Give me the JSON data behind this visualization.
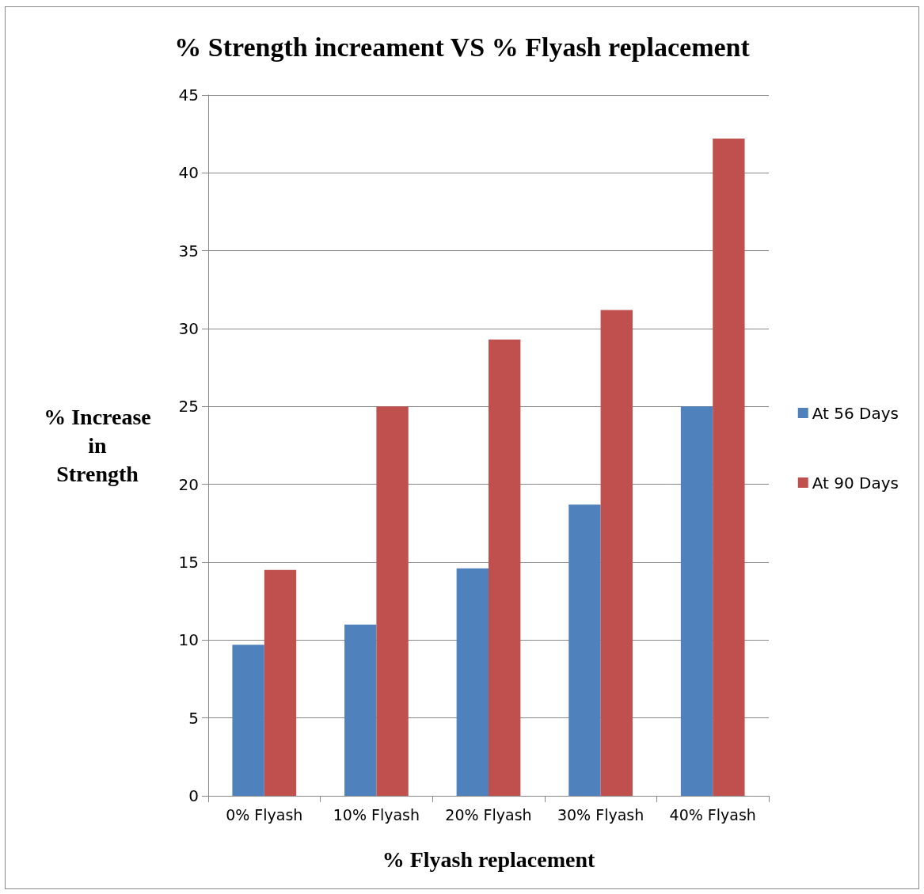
{
  "chart_data": {
    "type": "bar",
    "title": "% Strength increament VS % Flyash replacement",
    "xlabel": "% Flyash replacement",
    "ylabel": "% Increase\nin\nStrength",
    "categories": [
      "0% Flyash",
      "10% Flyash",
      "20% Flyash",
      "30% Flyash",
      "40% Flyash"
    ],
    "series": [
      {
        "name": "At 56 Days",
        "color": "#4f81bd",
        "values": [
          9.7,
          11.0,
          14.6,
          18.7,
          25.0
        ]
      },
      {
        "name": "At 90 Days",
        "color": "#c0504d",
        "values": [
          14.5,
          25.0,
          29.3,
          31.2,
          42.2
        ]
      }
    ],
    "ylim": [
      0,
      45
    ],
    "yticks": [
      0,
      5,
      10,
      15,
      20,
      25,
      30,
      35,
      40,
      45
    ],
    "grid": "y",
    "legend": "right"
  }
}
